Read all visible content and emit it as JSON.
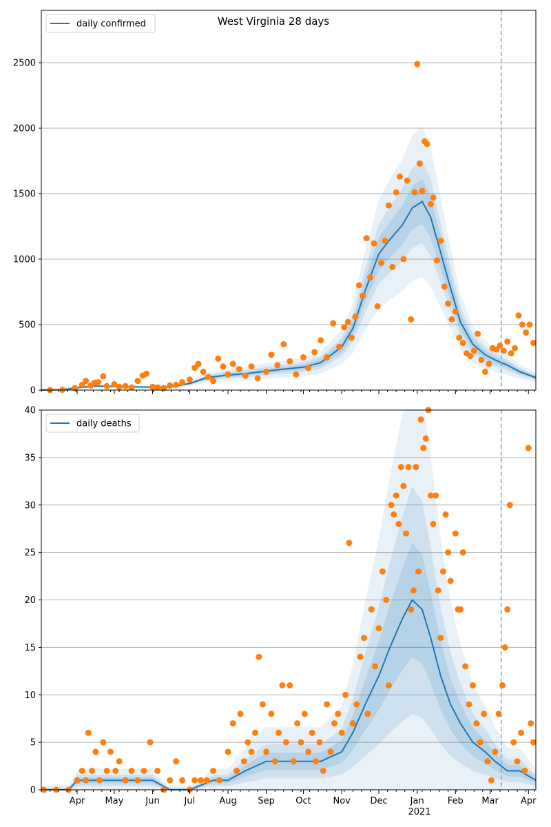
{
  "colors": {
    "model_line": "#1f77b4",
    "band": "#1f77b4",
    "observed": "#ff7f0e",
    "grid": "#b0b0b0",
    "forecast_marker": "#6fa8cc"
  },
  "figure": {
    "title": "West Virginia 28 days"
  },
  "x_axis": {
    "month_ticks": [
      "Apr",
      "May",
      "Jun",
      "Jul",
      "Aug",
      "Sep",
      "Oct",
      "Nov",
      "Dec",
      "Jan",
      "Feb",
      "Mar",
      "Apr"
    ],
    "year_label": "2021"
  },
  "chart_data": [
    {
      "type": "line",
      "panel": "top",
      "legend": "daily confirmed",
      "legend_position": "upper-left",
      "grid": "horizontal",
      "xlim": [
        "2020-03-03",
        "2021-04-07"
      ],
      "ylim": [
        0,
        2900
      ],
      "yticks": [
        0,
        500,
        1000,
        1500,
        2000,
        2500
      ],
      "forecast_start": "2021-03-10",
      "model_line": [
        [
          "2020-03-03",
          0
        ],
        [
          "2020-03-20",
          2
        ],
        [
          "2020-04-01",
          18
        ],
        [
          "2020-04-15",
          30
        ],
        [
          "2020-05-01",
          28
        ],
        [
          "2020-05-15",
          25
        ],
        [
          "2020-06-01",
          22
        ],
        [
          "2020-06-15",
          25
        ],
        [
          "2020-07-01",
          50
        ],
        [
          "2020-07-15",
          95
        ],
        [
          "2020-08-01",
          115
        ],
        [
          "2020-08-15",
          125
        ],
        [
          "2020-09-01",
          145
        ],
        [
          "2020-09-15",
          160
        ],
        [
          "2020-10-01",
          175
        ],
        [
          "2020-10-15",
          210
        ],
        [
          "2020-11-01",
          330
        ],
        [
          "2020-11-10",
          470
        ],
        [
          "2020-11-20",
          760
        ],
        [
          "2020-12-01",
          1040
        ],
        [
          "2020-12-10",
          1150
        ],
        [
          "2020-12-20",
          1260
        ],
        [
          "2020-12-28",
          1390
        ],
        [
          "2021-01-05",
          1440
        ],
        [
          "2021-01-12",
          1320
        ],
        [
          "2021-01-20",
          1050
        ],
        [
          "2021-01-28",
          780
        ],
        [
          "2021-02-05",
          520
        ],
        [
          "2021-02-15",
          350
        ],
        [
          "2021-02-25",
          270
        ],
        [
          "2021-03-05",
          230
        ],
        [
          "2021-03-15",
          190
        ],
        [
          "2021-03-25",
          140
        ],
        [
          "2021-04-07",
          95
        ]
      ],
      "band_half_width_pct": [
        40,
        22,
        12
      ],
      "observed_points": [
        [
          "2020-03-10",
          0
        ],
        [
          "2020-03-20",
          2
        ],
        [
          "2020-03-30",
          15
        ],
        [
          "2020-04-05",
          40
        ],
        [
          "2020-04-08",
          70
        ],
        [
          "2020-04-12",
          35
        ],
        [
          "2020-04-15",
          55
        ],
        [
          "2020-04-18",
          60
        ],
        [
          "2020-04-22",
          105
        ],
        [
          "2020-04-25",
          30
        ],
        [
          "2020-05-01",
          45
        ],
        [
          "2020-05-05",
          25
        ],
        [
          "2020-05-10",
          30
        ],
        [
          "2020-05-15",
          20
        ],
        [
          "2020-05-20",
          70
        ],
        [
          "2020-05-24",
          110
        ],
        [
          "2020-05-27",
          125
        ],
        [
          "2020-06-01",
          25
        ],
        [
          "2020-06-05",
          20
        ],
        [
          "2020-06-10",
          15
        ],
        [
          "2020-06-15",
          35
        ],
        [
          "2020-06-20",
          40
        ],
        [
          "2020-06-25",
          60
        ],
        [
          "2020-07-01",
          80
        ],
        [
          "2020-07-05",
          170
        ],
        [
          "2020-07-08",
          200
        ],
        [
          "2020-07-12",
          140
        ],
        [
          "2020-07-16",
          100
        ],
        [
          "2020-07-20",
          70
        ],
        [
          "2020-07-24",
          240
        ],
        [
          "2020-07-28",
          180
        ],
        [
          "2020-08-01",
          120
        ],
        [
          "2020-08-05",
          200
        ],
        [
          "2020-08-10",
          160
        ],
        [
          "2020-08-15",
          110
        ],
        [
          "2020-08-20",
          180
        ],
        [
          "2020-08-25",
          90
        ],
        [
          "2020-09-01",
          140
        ],
        [
          "2020-09-05",
          270
        ],
        [
          "2020-09-10",
          190
        ],
        [
          "2020-09-15",
          350
        ],
        [
          "2020-09-20",
          220
        ],
        [
          "2020-09-25",
          120
        ],
        [
          "2020-10-01",
          250
        ],
        [
          "2020-10-05",
          170
        ],
        [
          "2020-10-10",
          290
        ],
        [
          "2020-10-15",
          380
        ],
        [
          "2020-10-20",
          250
        ],
        [
          "2020-10-25",
          510
        ],
        [
          "2020-10-30",
          330
        ],
        [
          "2020-11-03",
          480
        ],
        [
          "2020-11-06",
          520
        ],
        [
          "2020-11-09",
          400
        ],
        [
          "2020-11-12",
          560
        ],
        [
          "2020-11-15",
          800
        ],
        [
          "2020-11-18",
          720
        ],
        [
          "2020-11-21",
          1160
        ],
        [
          "2020-11-24",
          860
        ],
        [
          "2020-11-27",
          1120
        ],
        [
          "2020-11-30",
          640
        ],
        [
          "2020-12-03",
          970
        ],
        [
          "2020-12-06",
          1140
        ],
        [
          "2020-12-09",
          1410
        ],
        [
          "2020-12-12",
          940
        ],
        [
          "2020-12-15",
          1510
        ],
        [
          "2020-12-18",
          1630
        ],
        [
          "2020-12-21",
          1000
        ],
        [
          "2020-12-24",
          1600
        ],
        [
          "2020-12-27",
          540
        ],
        [
          "2020-12-30",
          1510
        ],
        [
          "2021-01-01",
          2490
        ],
        [
          "2021-01-03",
          1730
        ],
        [
          "2021-01-05",
          1520
        ],
        [
          "2021-01-07",
          1900
        ],
        [
          "2021-01-09",
          1880
        ],
        [
          "2021-01-12",
          1420
        ],
        [
          "2021-01-14",
          1470
        ],
        [
          "2021-01-17",
          990
        ],
        [
          "2021-01-20",
          1140
        ],
        [
          "2021-01-23",
          790
        ],
        [
          "2021-01-26",
          660
        ],
        [
          "2021-01-29",
          540
        ],
        [
          "2021-02-01",
          600
        ],
        [
          "2021-02-04",
          400
        ],
        [
          "2021-02-07",
          360
        ],
        [
          "2021-02-10",
          280
        ],
        [
          "2021-02-13",
          260
        ],
        [
          "2021-02-16",
          300
        ],
        [
          "2021-02-19",
          430
        ],
        [
          "2021-02-22",
          230
        ],
        [
          "2021-02-25",
          140
        ],
        [
          "2021-02-28",
          200
        ],
        [
          "2021-03-03",
          320
        ],
        [
          "2021-03-06",
          310
        ],
        [
          "2021-03-09",
          340
        ],
        [
          "2021-03-12",
          300
        ],
        [
          "2021-03-15",
          370
        ],
        [
          "2021-03-18",
          280
        ],
        [
          "2021-03-21",
          320
        ],
        [
          "2021-03-24",
          570
        ],
        [
          "2021-03-27",
          500
        ],
        [
          "2021-03-30",
          440
        ],
        [
          "2021-04-02",
          500
        ],
        [
          "2021-04-05",
          360
        ]
      ]
    },
    {
      "type": "line",
      "panel": "bottom",
      "legend": "daily deaths",
      "legend_position": "upper-left",
      "grid": "horizontal",
      "xlim": [
        "2020-03-03",
        "2021-04-07"
      ],
      "ylim": [
        0,
        40
      ],
      "yticks": [
        0,
        5,
        10,
        15,
        20,
        25,
        30,
        35,
        40
      ],
      "forecast_start": "2021-03-10",
      "model_line": [
        [
          "2020-03-03",
          0
        ],
        [
          "2020-03-25",
          0
        ],
        [
          "2020-04-01",
          1
        ],
        [
          "2020-05-01",
          1
        ],
        [
          "2020-06-01",
          1
        ],
        [
          "2020-06-15",
          0
        ],
        [
          "2020-07-01",
          0
        ],
        [
          "2020-07-20",
          1
        ],
        [
          "2020-08-01",
          1
        ],
        [
          "2020-08-15",
          2
        ],
        [
          "2020-09-01",
          3
        ],
        [
          "2020-09-15",
          3
        ],
        [
          "2020-10-01",
          3
        ],
        [
          "2020-10-15",
          3
        ],
        [
          "2020-11-01",
          4
        ],
        [
          "2020-11-10",
          6
        ],
        [
          "2020-11-20",
          9
        ],
        [
          "2020-12-01",
          12
        ],
        [
          "2020-12-10",
          15
        ],
        [
          "2020-12-20",
          18
        ],
        [
          "2020-12-28",
          20
        ],
        [
          "2021-01-05",
          19
        ],
        [
          "2021-01-12",
          16
        ],
        [
          "2021-01-20",
          12
        ],
        [
          "2021-01-28",
          9
        ],
        [
          "2021-02-05",
          7
        ],
        [
          "2021-02-15",
          5
        ],
        [
          "2021-02-25",
          4
        ],
        [
          "2021-03-05",
          3
        ],
        [
          "2021-03-15",
          2
        ],
        [
          "2021-03-25",
          2
        ],
        [
          "2021-04-07",
          1
        ]
      ],
      "band_half_width_pct": [
        120,
        60,
        30
      ],
      "observed_points": [
        [
          "2020-03-05",
          0
        ],
        [
          "2020-03-15",
          0
        ],
        [
          "2020-03-25",
          0
        ],
        [
          "2020-04-01",
          1
        ],
        [
          "2020-04-05",
          2
        ],
        [
          "2020-04-08",
          1
        ],
        [
          "2020-04-10",
          6
        ],
        [
          "2020-04-13",
          2
        ],
        [
          "2020-04-16",
          4
        ],
        [
          "2020-04-19",
          1
        ],
        [
          "2020-04-22",
          5
        ],
        [
          "2020-04-25",
          2
        ],
        [
          "2020-04-28",
          4
        ],
        [
          "2020-05-02",
          2
        ],
        [
          "2020-05-05",
          3
        ],
        [
          "2020-05-10",
          1
        ],
        [
          "2020-05-15",
          2
        ],
        [
          "2020-05-20",
          1
        ],
        [
          "2020-05-25",
          2
        ],
        [
          "2020-05-30",
          5
        ],
        [
          "2020-06-05",
          2
        ],
        [
          "2020-06-10",
          0
        ],
        [
          "2020-06-15",
          1
        ],
        [
          "2020-06-20",
          3
        ],
        [
          "2020-06-25",
          1
        ],
        [
          "2020-07-01",
          0
        ],
        [
          "2020-07-05",
          1
        ],
        [
          "2020-07-10",
          1
        ],
        [
          "2020-07-15",
          1
        ],
        [
          "2020-07-20",
          2
        ],
        [
          "2020-07-25",
          1
        ],
        [
          "2020-08-01",
          4
        ],
        [
          "2020-08-05",
          7
        ],
        [
          "2020-08-08",
          2
        ],
        [
          "2020-08-11",
          8
        ],
        [
          "2020-08-14",
          3
        ],
        [
          "2020-08-17",
          5
        ],
        [
          "2020-08-20",
          4
        ],
        [
          "2020-08-23",
          6
        ],
        [
          "2020-08-26",
          14
        ],
        [
          "2020-08-29",
          9
        ],
        [
          "2020-09-01",
          4
        ],
        [
          "2020-09-05",
          8
        ],
        [
          "2020-09-08",
          3
        ],
        [
          "2020-09-11",
          6
        ],
        [
          "2020-09-14",
          11
        ],
        [
          "2020-09-17",
          5
        ],
        [
          "2020-09-20",
          11
        ],
        [
          "2020-09-23",
          3
        ],
        [
          "2020-09-26",
          7
        ],
        [
          "2020-09-29",
          5
        ],
        [
          "2020-10-02",
          8
        ],
        [
          "2020-10-05",
          4
        ],
        [
          "2020-10-08",
          6
        ],
        [
          "2020-10-11",
          3
        ],
        [
          "2020-10-14",
          5
        ],
        [
          "2020-10-17",
          2
        ],
        [
          "2020-10-20",
          9
        ],
        [
          "2020-10-23",
          4
        ],
        [
          "2020-10-26",
          7
        ],
        [
          "2020-10-29",
          8
        ],
        [
          "2020-11-01",
          6
        ],
        [
          "2020-11-04",
          10
        ],
        [
          "2020-11-07",
          26
        ],
        [
          "2020-11-10",
          7
        ],
        [
          "2020-11-13",
          9
        ],
        [
          "2020-11-16",
          14
        ],
        [
          "2020-11-19",
          16
        ],
        [
          "2020-11-22",
          8
        ],
        [
          "2020-11-25",
          19
        ],
        [
          "2020-11-28",
          13
        ],
        [
          "2020-12-01",
          17
        ],
        [
          "2020-12-04",
          23
        ],
        [
          "2020-12-07",
          20
        ],
        [
          "2020-12-09",
          11
        ],
        [
          "2020-12-11",
          30
        ],
        [
          "2020-12-13",
          29
        ],
        [
          "2020-12-15",
          31
        ],
        [
          "2020-12-17",
          28
        ],
        [
          "2020-12-19",
          34
        ],
        [
          "2020-12-21",
          32
        ],
        [
          "2020-12-23",
          27
        ],
        [
          "2020-12-25",
          34
        ],
        [
          "2020-12-27",
          19
        ],
        [
          "2020-12-29",
          21
        ],
        [
          "2020-12-31",
          34
        ],
        [
          "2021-01-02",
          23
        ],
        [
          "2021-01-04",
          39
        ],
        [
          "2021-01-06",
          36
        ],
        [
          "2021-01-08",
          37
        ],
        [
          "2021-01-10",
          40
        ],
        [
          "2021-01-12",
          31
        ],
        [
          "2021-01-14",
          28
        ],
        [
          "2021-01-16",
          31
        ],
        [
          "2021-01-18",
          21
        ],
        [
          "2021-01-20",
          16
        ],
        [
          "2021-01-22",
          23
        ],
        [
          "2021-01-24",
          29
        ],
        [
          "2021-01-26",
          25
        ],
        [
          "2021-01-28",
          22
        ],
        [
          "2021-02-01",
          27
        ],
        [
          "2021-02-03",
          19
        ],
        [
          "2021-02-05",
          19
        ],
        [
          "2021-02-07",
          25
        ],
        [
          "2021-02-09",
          13
        ],
        [
          "2021-02-12",
          9
        ],
        [
          "2021-02-15",
          11
        ],
        [
          "2021-02-18",
          7
        ],
        [
          "2021-02-21",
          5
        ],
        [
          "2021-02-24",
          8
        ],
        [
          "2021-02-27",
          3
        ],
        [
          "2021-03-02",
          1
        ],
        [
          "2021-03-05",
          4
        ],
        [
          "2021-03-08",
          8
        ],
        [
          "2021-03-11",
          11
        ],
        [
          "2021-03-13",
          15
        ],
        [
          "2021-03-15",
          19
        ],
        [
          "2021-03-17",
          30
        ],
        [
          "2021-03-20",
          5
        ],
        [
          "2021-03-23",
          3
        ],
        [
          "2021-03-26",
          6
        ],
        [
          "2021-03-29",
          2
        ],
        [
          "2021-04-01",
          36
        ],
        [
          "2021-04-03",
          7
        ],
        [
          "2021-04-05",
          5
        ]
      ]
    }
  ]
}
